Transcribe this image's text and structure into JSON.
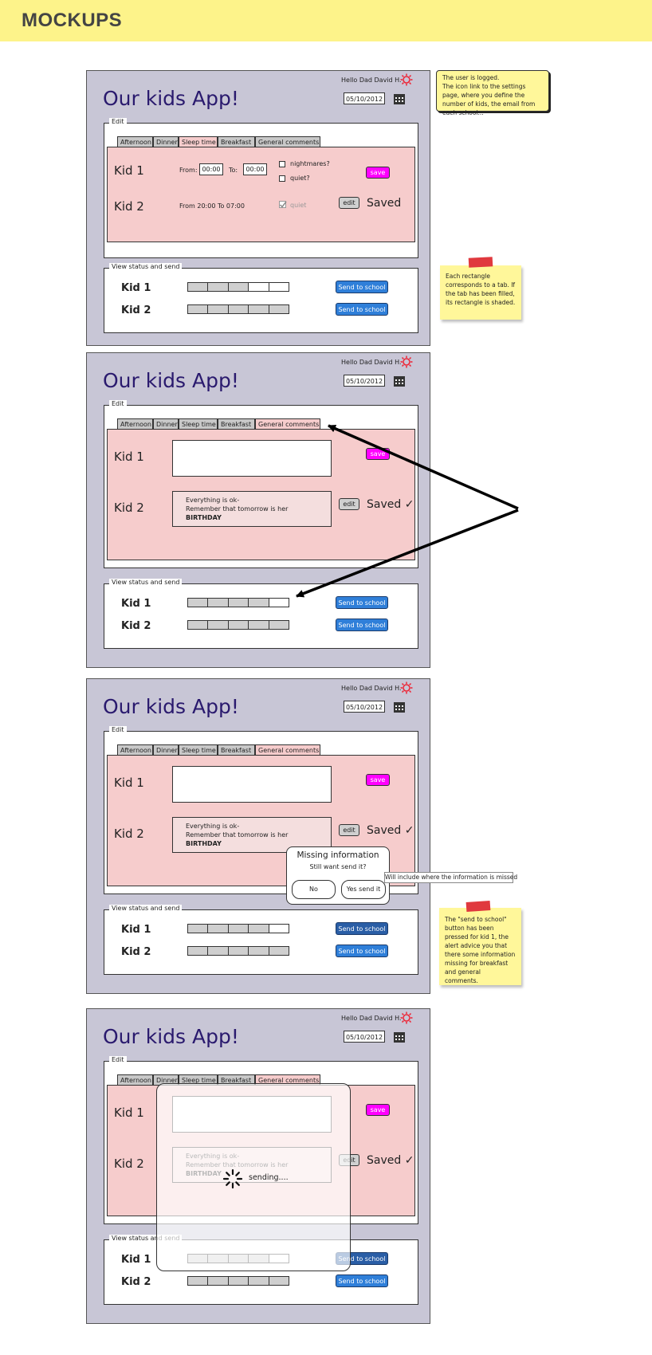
{
  "page_title": "MOCKUPS",
  "app": {
    "title": "Our kids App!",
    "greeting": "Hello Dad David H.",
    "date": "05/10/2012"
  },
  "sections": {
    "edit": "Edit",
    "status": "View status and send"
  },
  "tabs": [
    "Afternoon",
    "Dinner",
    "Sleep time",
    "Breakfast",
    "General comments"
  ],
  "kids": [
    "Kid 1",
    "Kid 2"
  ],
  "buttons": {
    "save": "save",
    "edit": "edit",
    "send": "Send to school",
    "no": "No",
    "yes": "Yes send it"
  },
  "saved": "Saved",
  "saved_check": "Saved ✓",
  "sleep": {
    "from": "From:",
    "to": "To:",
    "from_value": "00:00",
    "to_value": "00:00",
    "nightmares": "nightmares?",
    "quiet_q": "quiet?",
    "kid2_text": "From   20:00    To   07:00",
    "quiet": "quiet"
  },
  "comment": {
    "line1": "Everything is ok-",
    "line2": "Remember that tomorrow is her",
    "line3": "BIRTHDAY"
  },
  "dialog": {
    "title": "Missing information",
    "question": "Still want send it?"
  },
  "sending": "sending....",
  "notes": {
    "logged": "The user is logged.\nThe icon link to the settings page, where you define the number of kids, the email from each school...",
    "rectangle": "Each rectangle corresponds to a tab. If the tab has been filled, its rectangle is shaded.",
    "missing": "Will include where the information is missed",
    "alert": "The \"send to school\" button has been pressed for kid 1, the alert advice you that there some information missing for breakfast and general comments."
  },
  "colors": {
    "header": "#fdf38a",
    "frame": "#c8c6d6",
    "tab_zone": "#f6cccc",
    "save": "#ff00ff",
    "send": "#2f7fd9",
    "sticky": "#fff79a"
  },
  "progress": {
    "screen1": {
      "kid1": [
        1,
        1,
        1,
        0,
        0
      ],
      "kid2": [
        1,
        1,
        1,
        1,
        1
      ]
    },
    "screen2": {
      "kid1": [
        1,
        1,
        1,
        1,
        0
      ],
      "kid2": [
        1,
        1,
        1,
        1,
        1
      ]
    },
    "screen3": {
      "kid1": [
        1,
        1,
        1,
        1,
        0
      ],
      "kid2": [
        1,
        1,
        1,
        1,
        1
      ]
    },
    "screen4": {
      "kid1": [
        1,
        1,
        1,
        1,
        0
      ],
      "kid2": [
        1,
        1,
        1,
        1,
        1
      ]
    }
  }
}
